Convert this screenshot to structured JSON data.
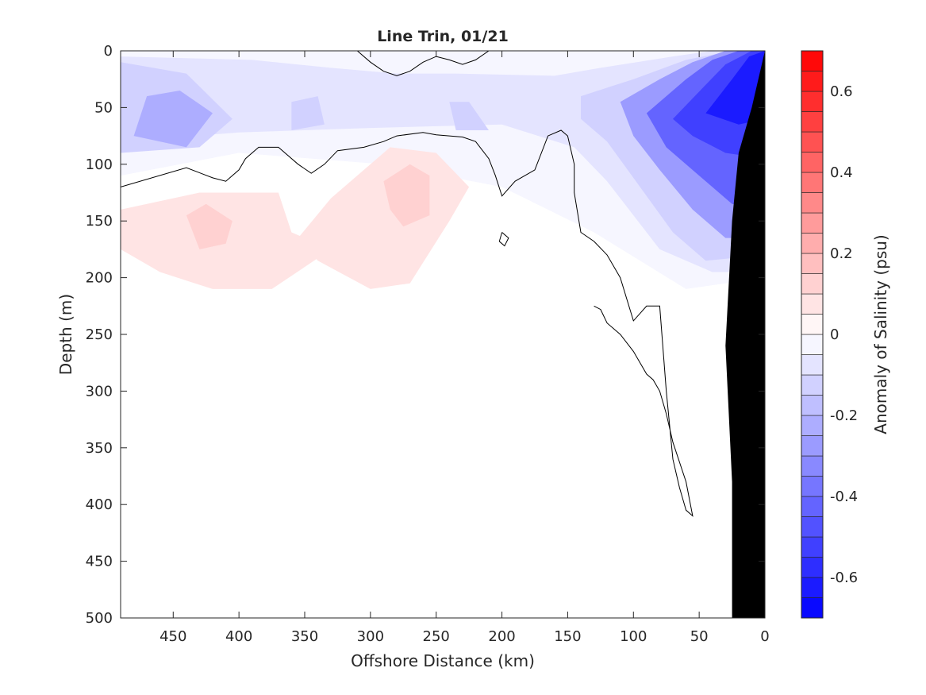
{
  "chart_data": {
    "type": "heatmap",
    "title": "Line Trin, 01/21",
    "xlabel": "Offshore Distance (km)",
    "ylabel": "Depth (m)",
    "xlim": [
      490,
      0
    ],
    "ylim": [
      0,
      500
    ],
    "x_reversed": true,
    "y_reversed": true,
    "x_ticks": [
      450,
      400,
      350,
      300,
      250,
      200,
      150,
      100,
      50,
      0
    ],
    "y_ticks": [
      0,
      50,
      100,
      150,
      200,
      250,
      300,
      350,
      400,
      450,
      500
    ],
    "colorbar": {
      "label": "Anomaly of Salinity (psu)",
      "limits": [
        -0.7,
        0.7
      ],
      "levels": 28,
      "ticks": [
        0.6,
        0.4,
        0.2,
        0,
        -0.2,
        -0.4,
        -0.6
      ],
      "color_low": "#0000ff",
      "color_high": "#ff0000",
      "color_mid": "#ffffff"
    },
    "regions": [
      {
        "anomaly": -0.05,
        "points": [
          [
            490,
            0
          ],
          [
            0,
            0
          ],
          [
            0,
            200
          ],
          [
            60,
            210
          ],
          [
            130,
            160
          ],
          [
            200,
            120
          ],
          [
            290,
            100
          ],
          [
            400,
            90
          ],
          [
            490,
            110
          ]
        ]
      },
      {
        "anomaly": -0.1,
        "points": [
          [
            490,
            5
          ],
          [
            390,
            8
          ],
          [
            330,
            15
          ],
          [
            280,
            20
          ],
          [
            235,
            20
          ],
          [
            160,
            22
          ],
          [
            125,
            15
          ],
          [
            70,
            5
          ],
          [
            40,
            0
          ],
          [
            0,
            0
          ],
          [
            0,
            195
          ],
          [
            40,
            195
          ],
          [
            80,
            175
          ],
          [
            120,
            115
          ],
          [
            145,
            85
          ],
          [
            200,
            65
          ],
          [
            300,
            68
          ],
          [
            400,
            72
          ],
          [
            490,
            80
          ]
        ]
      },
      {
        "anomaly": -0.15,
        "points": [
          [
            490,
            10
          ],
          [
            440,
            20
          ],
          [
            405,
            60
          ],
          [
            430,
            85
          ],
          [
            490,
            90
          ]
        ]
      },
      {
        "anomaly": -0.15,
        "points": [
          [
            360,
            45
          ],
          [
            340,
            40
          ],
          [
            335,
            65
          ],
          [
            360,
            70
          ]
        ]
      },
      {
        "anomaly": -0.15,
        "points": [
          [
            240,
            45
          ],
          [
            225,
            45
          ],
          [
            210,
            70
          ],
          [
            235,
            70
          ]
        ]
      },
      {
        "anomaly": -0.15,
        "points": [
          [
            140,
            40
          ],
          [
            100,
            25
          ],
          [
            60,
            8
          ],
          [
            25,
            0
          ],
          [
            0,
            0
          ],
          [
            0,
            180
          ],
          [
            45,
            185
          ],
          [
            70,
            160
          ],
          [
            95,
            120
          ],
          [
            120,
            80
          ],
          [
            140,
            60
          ]
        ]
      },
      {
        "anomaly": -0.25,
        "points": [
          [
            470,
            40
          ],
          [
            445,
            35
          ],
          [
            420,
            55
          ],
          [
            440,
            85
          ],
          [
            480,
            75
          ]
        ]
      },
      {
        "anomaly": -0.3,
        "points": [
          [
            110,
            45
          ],
          [
            80,
            25
          ],
          [
            55,
            10
          ],
          [
            30,
            0
          ],
          [
            0,
            0
          ],
          [
            0,
            165
          ],
          [
            30,
            165
          ],
          [
            55,
            140
          ],
          [
            80,
            105
          ],
          [
            100,
            75
          ]
        ]
      },
      {
        "anomaly": -0.4,
        "points": [
          [
            90,
            55
          ],
          [
            60,
            25
          ],
          [
            40,
            8
          ],
          [
            20,
            0
          ],
          [
            0,
            0
          ],
          [
            0,
            140
          ],
          [
            25,
            135
          ],
          [
            50,
            110
          ],
          [
            75,
            85
          ]
        ]
      },
      {
        "anomaly": -0.5,
        "points": [
          [
            70,
            60
          ],
          [
            45,
            30
          ],
          [
            30,
            12
          ],
          [
            10,
            0
          ],
          [
            0,
            0
          ],
          [
            0,
            95
          ],
          [
            30,
            90
          ],
          [
            55,
            75
          ]
        ]
      },
      {
        "anomaly": -0.6,
        "points": [
          [
            45,
            55
          ],
          [
            25,
            25
          ],
          [
            12,
            5
          ],
          [
            0,
            0
          ],
          [
            0,
            60
          ],
          [
            20,
            65
          ]
        ]
      },
      {
        "anomaly": 0.05,
        "points": [
          [
            490,
            140
          ],
          [
            430,
            125
          ],
          [
            370,
            125
          ],
          [
            360,
            160
          ],
          [
            330,
            175
          ],
          [
            375,
            210
          ],
          [
            420,
            210
          ],
          [
            460,
            195
          ],
          [
            490,
            175
          ]
        ]
      },
      {
        "anomaly": 0.05,
        "points": [
          [
            330,
            130
          ],
          [
            285,
            85
          ],
          [
            250,
            90
          ],
          [
            225,
            120
          ],
          [
            240,
            150
          ],
          [
            270,
            205
          ],
          [
            300,
            210
          ],
          [
            340,
            185
          ],
          [
            355,
            165
          ]
        ]
      },
      {
        "anomaly": 0.1,
        "points": [
          [
            440,
            145
          ],
          [
            425,
            135
          ],
          [
            405,
            150
          ],
          [
            410,
            170
          ],
          [
            430,
            175
          ]
        ]
      },
      {
        "anomaly": 0.1,
        "points": [
          [
            290,
            115
          ],
          [
            270,
            100
          ],
          [
            255,
            110
          ],
          [
            255,
            145
          ],
          [
            275,
            155
          ],
          [
            285,
            140
          ]
        ]
      }
    ],
    "zero_contours": [
      [
        [
          490,
          120
        ],
        [
          440,
          103
        ],
        [
          420,
          112
        ],
        [
          410,
          115
        ],
        [
          400,
          105
        ],
        [
          395,
          95
        ],
        [
          385,
          85
        ],
        [
          370,
          85
        ],
        [
          355,
          100
        ],
        [
          345,
          108
        ],
        [
          335,
          100
        ],
        [
          325,
          88
        ],
        [
          305,
          85
        ],
        [
          290,
          80
        ],
        [
          280,
          75
        ],
        [
          260,
          72
        ],
        [
          250,
          74
        ],
        [
          230,
          76
        ],
        [
          220,
          80
        ],
        [
          210,
          95
        ],
        [
          205,
          110
        ],
        [
          200,
          128
        ],
        [
          190,
          115
        ],
        [
          175,
          105
        ],
        [
          165,
          75
        ],
        [
          155,
          70
        ],
        [
          150,
          75
        ],
        [
          145,
          100
        ],
        [
          145,
          125
        ],
        [
          140,
          160
        ],
        [
          130,
          168
        ],
        [
          120,
          180
        ],
        [
          110,
          200
        ],
        [
          100,
          238
        ],
        [
          90,
          225
        ],
        [
          80,
          225
        ],
        [
          75,
          300
        ],
        [
          70,
          360
        ],
        [
          65,
          385
        ],
        [
          60,
          405
        ],
        [
          55,
          410
        ],
        [
          60,
          380
        ],
        [
          70,
          345
        ],
        [
          75,
          320
        ],
        [
          80,
          300
        ],
        [
          85,
          290
        ],
        [
          90,
          285
        ],
        [
          100,
          265
        ],
        [
          110,
          250
        ],
        [
          120,
          240
        ],
        [
          125,
          228
        ],
        [
          130,
          225
        ]
      ],
      [
        [
          310,
          0
        ],
        [
          300,
          10
        ],
        [
          290,
          18
        ],
        [
          280,
          22
        ],
        [
          270,
          18
        ],
        [
          260,
          10
        ],
        [
          250,
          5
        ],
        [
          240,
          8
        ],
        [
          230,
          12
        ],
        [
          220,
          8
        ],
        [
          210,
          0
        ]
      ],
      [
        [
          200,
          160
        ],
        [
          195,
          165
        ],
        [
          198,
          172
        ],
        [
          202,
          168
        ],
        [
          200,
          160
        ]
      ]
    ],
    "land": {
      "label": "",
      "points": [
        [
          25,
          500
        ],
        [
          0,
          500
        ],
        [
          0,
          0
        ],
        [
          10,
          50
        ],
        [
          20,
          90
        ],
        [
          25,
          150
        ],
        [
          30,
          260
        ],
        [
          25,
          380
        ],
        [
          25,
          500
        ]
      ]
    }
  }
}
